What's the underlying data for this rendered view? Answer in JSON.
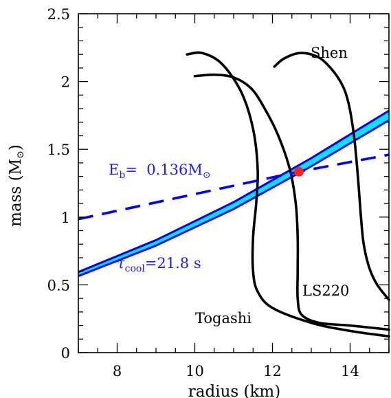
{
  "chart_data": {
    "type": "line",
    "xlabel": "radius (km)",
    "ylabel": "mass (M",
    "ylabel_unit_symbol": "⊙",
    "xlim": [
      7,
      15
    ],
    "ylim": [
      0,
      2.5
    ],
    "x_ticks": [
      {
        "value": 8,
        "label": "8"
      },
      {
        "value": 10,
        "label": "10"
      },
      {
        "value": 12,
        "label": "12"
      },
      {
        "value": 14,
        "label": "14"
      }
    ],
    "y_ticks": [
      {
        "value": 0,
        "label": "0"
      },
      {
        "value": 0.5,
        "label": "0.5"
      },
      {
        "value": 1,
        "label": "1"
      },
      {
        "value": 1.5,
        "label": "1.5"
      },
      {
        "value": 2,
        "label": "2"
      },
      {
        "value": 2.5,
        "label": "2.5"
      }
    ],
    "grid": false,
    "eos_curves": [
      {
        "label": "Shen",
        "color": "#000000",
        "points": [
          [
            12.05,
            2.11
          ],
          [
            12.3,
            2.17
          ],
          [
            12.7,
            2.21
          ],
          [
            13.1,
            2.19
          ],
          [
            13.4,
            2.13
          ],
          [
            13.75,
            2.0
          ],
          [
            13.95,
            1.85
          ],
          [
            14.1,
            1.6
          ],
          [
            14.2,
            1.3
          ],
          [
            14.28,
            1.0
          ],
          [
            14.35,
            0.8
          ],
          [
            14.5,
            0.62
          ],
          [
            14.7,
            0.5
          ],
          [
            15.0,
            0.39
          ]
        ]
      },
      {
        "label": "LS220",
        "color": "#000000",
        "points": [
          [
            10.0,
            2.04
          ],
          [
            10.5,
            2.05
          ],
          [
            11.0,
            2.03
          ],
          [
            11.45,
            1.95
          ],
          [
            11.8,
            1.8
          ],
          [
            12.15,
            1.6
          ],
          [
            12.45,
            1.35
          ],
          [
            12.6,
            1.1
          ],
          [
            12.65,
            0.85
          ],
          [
            12.65,
            0.6
          ],
          [
            12.65,
            0.4
          ],
          [
            12.75,
            0.28
          ],
          [
            13.2,
            0.22
          ],
          [
            14.0,
            0.2
          ],
          [
            15.0,
            0.17
          ]
        ]
      },
      {
        "label": "Togashi",
        "color": "#000000",
        "points": [
          [
            9.8,
            2.2
          ],
          [
            10.2,
            2.21
          ],
          [
            10.7,
            2.13
          ],
          [
            11.2,
            1.92
          ],
          [
            11.5,
            1.65
          ],
          [
            11.62,
            1.35
          ],
          [
            11.58,
            1.1
          ],
          [
            11.5,
            0.85
          ],
          [
            11.5,
            0.6
          ],
          [
            11.62,
            0.45
          ],
          [
            12.0,
            0.33
          ],
          [
            13.0,
            0.22
          ],
          [
            14.0,
            0.16
          ],
          [
            15.0,
            0.12
          ]
        ]
      }
    ],
    "tau_band": {
      "label_main": "τ",
      "label_sub": "cool",
      "label_rest": "=21.8 s",
      "edge_color": "#0000ff",
      "fill_color": "#00e5ff",
      "lower": [
        [
          7,
          0.565
        ],
        [
          9,
          0.79
        ],
        [
          11,
          1.06
        ],
        [
          13,
          1.375
        ],
        [
          15,
          1.715
        ]
      ],
      "upper": [
        [
          7,
          0.595
        ],
        [
          9,
          0.83
        ],
        [
          11,
          1.11
        ],
        [
          13,
          1.435
        ],
        [
          15,
          1.785
        ]
      ]
    },
    "eb_line": {
      "label_main": "E",
      "label_sub": "b",
      "label_rest": "=  0.136M",
      "label_sym": "⊙",
      "color": "#0000ff",
      "dashed": true,
      "points": [
        [
          7,
          0.985
        ],
        [
          12.68,
          1.335
        ],
        [
          15,
          1.46
        ]
      ]
    },
    "intersection": {
      "x": 12.68,
      "y": 1.335,
      "color": "#ff2020"
    }
  }
}
